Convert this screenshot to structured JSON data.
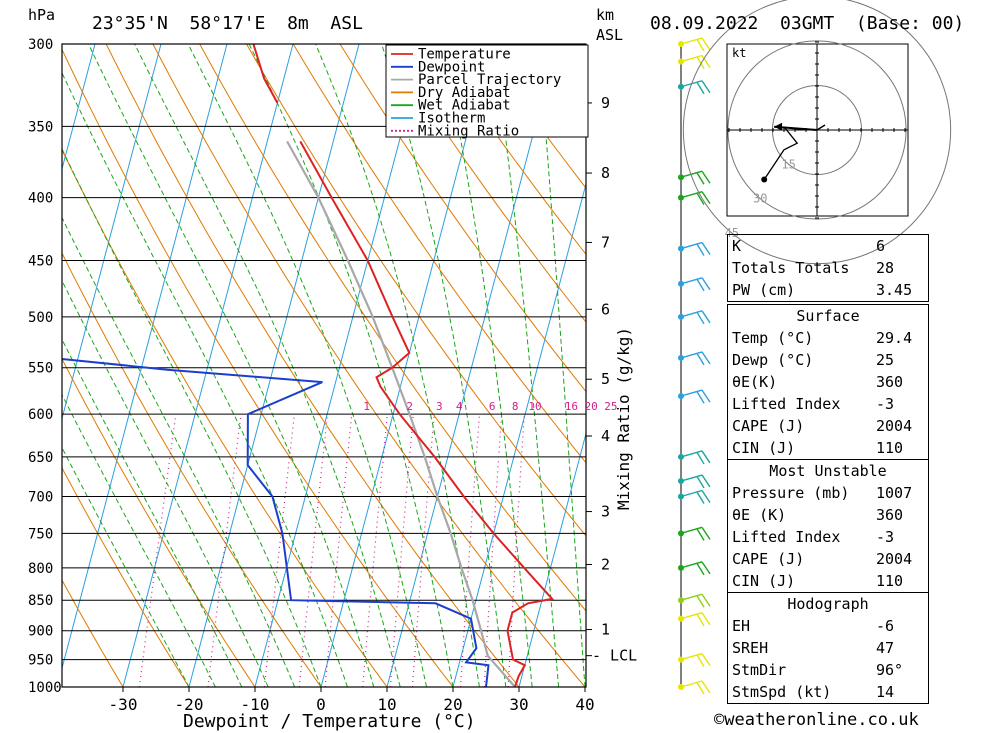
{
  "header": {
    "pressure_unit": "hPa",
    "location": "23°35'N  58°17'E  8m  ASL",
    "km_unit": "km",
    "asl_unit": "ASL",
    "date": "08.09.2022  03GMT  (Base: 00)"
  },
  "chart_data": {
    "type": "skew-t log-p",
    "xlabel": "Dewpoint / Temperature (°C)",
    "ylabel_right": "Mixing Ratio (g/kg)",
    "pressure_ticks": [
      300,
      350,
      400,
      450,
      500,
      550,
      600,
      650,
      700,
      750,
      800,
      850,
      900,
      950,
      1000
    ],
    "temperature_ticks": [
      -30,
      -20,
      -10,
      0,
      10,
      20,
      30,
      40
    ],
    "ylim_hpa": [
      1000,
      300
    ],
    "xlim_c": [
      -40,
      40
    ],
    "km_ticks": [
      {
        "label": "9",
        "p": 335
      },
      {
        "label": "8",
        "p": 382
      },
      {
        "label": "7",
        "p": 435
      },
      {
        "label": "6",
        "p": 493
      },
      {
        "label": "5",
        "p": 562
      },
      {
        "label": "4",
        "p": 625
      },
      {
        "label": "3",
        "p": 720
      },
      {
        "label": "2",
        "p": 795
      },
      {
        "label": "1",
        "p": 898
      }
    ],
    "lcl": {
      "label": "LCL",
      "p": 943
    },
    "mixing_ratio_labels": [
      {
        "label": "1",
        "t": -4
      },
      {
        "label": "2",
        "t": 2.5
      },
      {
        "label": "3",
        "t": 7
      },
      {
        "label": "4",
        "t": 10
      },
      {
        "label": "6",
        "t": 15
      },
      {
        "label": "8",
        "t": 18.5
      },
      {
        "label": "10",
        "t": 21.5
      },
      {
        "label": "16",
        "t": 27
      },
      {
        "label": "20",
        "t": 30
      },
      {
        "label": "25",
        "t": 33
      }
    ],
    "legend": [
      {
        "name": "Temperature",
        "color": "#dd2222",
        "style": "solid"
      },
      {
        "name": "Dewpoint",
        "color": "#1a3fcc",
        "style": "solid"
      },
      {
        "name": "Parcel Trajectory",
        "color": "#a8a8a8",
        "style": "solid"
      },
      {
        "name": "Dry Adiabat",
        "color": "#e07a00",
        "style": "solid"
      },
      {
        "name": "Wet Adiabat",
        "color": "#1aa61a",
        "style": "solid"
      },
      {
        "name": "Isotherm",
        "color": "#2aa0e0",
        "style": "solid"
      },
      {
        "name": "Mixing Ratio",
        "color": "#d0208a",
        "style": "dotted"
      }
    ],
    "temperature": [
      {
        "p": 1000,
        "t": 29.4
      },
      {
        "p": 980,
        "t": 29.5
      },
      {
        "p": 960,
        "t": 30
      },
      {
        "p": 950,
        "t": 28
      },
      {
        "p": 900,
        "t": 26
      },
      {
        "p": 870,
        "t": 26
      },
      {
        "p": 855,
        "t": 28
      },
      {
        "p": 848,
        "t": 31.5
      },
      {
        "p": 800,
        "t": 26
      },
      {
        "p": 750,
        "t": 20
      },
      {
        "p": 700,
        "t": 14
      },
      {
        "p": 650,
        "t": 8
      },
      {
        "p": 600,
        "t": 1
      },
      {
        "p": 570,
        "t": -3
      },
      {
        "p": 560,
        "t": -4
      },
      {
        "p": 550,
        "t": -2
      },
      {
        "p": 535,
        "t": 0
      },
      {
        "p": 500,
        "t": -4
      },
      {
        "p": 450,
        "t": -10
      },
      {
        "p": 400,
        "t": -18
      },
      {
        "p": 360,
        "t": -25
      }
    ],
    "temperature_upper": [
      {
        "p": 335,
        "t": -30
      },
      {
        "p": 320,
        "t": -33
      },
      {
        "p": 300,
        "t": -36
      }
    ],
    "dewpoint": [
      {
        "p": 1000,
        "t": 25
      },
      {
        "p": 960,
        "t": 24.5
      },
      {
        "p": 955,
        "t": 21
      },
      {
        "p": 930,
        "t": 22
      },
      {
        "p": 880,
        "t": 20
      },
      {
        "p": 855,
        "t": 14
      },
      {
        "p": 850,
        "t": -8
      },
      {
        "p": 750,
        "t": -12
      },
      {
        "p": 700,
        "t": -15
      },
      {
        "p": 660,
        "t": -20
      },
      {
        "p": 600,
        "t": -22
      },
      {
        "p": 565,
        "t": -12
      },
      {
        "p": 552,
        "t": -36
      },
      {
        "p": 540,
        "t": -54
      },
      {
        "p": 500,
        "t": -58
      },
      {
        "p": 460,
        "t": -56
      },
      {
        "p": 440,
        "t": -57
      },
      {
        "p": 400,
        "t": -64
      },
      {
        "p": 350,
        "t": -72
      },
      {
        "p": 320,
        "t": -76
      },
      {
        "p": 300,
        "t": -84
      }
    ],
    "parcel": [
      {
        "p": 1000,
        "t": 29.4
      },
      {
        "p": 943,
        "t": 24
      },
      {
        "p": 900,
        "t": 22
      },
      {
        "p": 850,
        "t": 19.5
      },
      {
        "p": 800,
        "t": 16.5
      },
      {
        "p": 750,
        "t": 13.5
      },
      {
        "p": 700,
        "t": 10
      },
      {
        "p": 650,
        "t": 6.5
      },
      {
        "p": 600,
        "t": 2.5
      },
      {
        "p": 550,
        "t": -2
      },
      {
        "p": 500,
        "t": -7
      },
      {
        "p": 450,
        "t": -13
      },
      {
        "p": 400,
        "t": -20
      },
      {
        "p": 360,
        "t": -27
      }
    ],
    "hodograph": {
      "unit": "kt",
      "ring_labels": [
        "15",
        "30",
        "45"
      ],
      "trace_kt": [
        [
          -10,
          1
        ],
        [
          -6,
          -4
        ],
        [
          -10,
          -6
        ],
        [
          -14,
          -12
        ],
        [
          -16,
          -15
        ]
      ],
      "storm_motion_kt": [
        -13,
        1
      ]
    },
    "wind_barbs": [
      {
        "p": 1000,
        "color": "#e6e600"
      },
      {
        "p": 950,
        "color": "#e6e600"
      },
      {
        "p": 880,
        "color": "#e6e600"
      },
      {
        "p": 850,
        "color": "#8fd01a"
      },
      {
        "p": 800,
        "color": "#1aa61a"
      },
      {
        "p": 750,
        "color": "#1aa61a"
      },
      {
        "p": 700,
        "color": "#1aa6a0"
      },
      {
        "p": 680,
        "color": "#1aa6a0"
      },
      {
        "p": 650,
        "color": "#1aa6a0"
      },
      {
        "p": 580,
        "color": "#2aa0e0"
      },
      {
        "p": 540,
        "color": "#2aa0e0"
      },
      {
        "p": 500,
        "color": "#2aa0e0"
      },
      {
        "p": 470,
        "color": "#2aa0e0"
      },
      {
        "p": 440,
        "color": "#2aa0e0"
      },
      {
        "p": 400,
        "color": "#1aa61a"
      },
      {
        "p": 385,
        "color": "#1aa61a"
      },
      {
        "p": 325,
        "color": "#1aa6a0"
      },
      {
        "p": 310,
        "color": "#e6e600"
      },
      {
        "p": 300,
        "color": "#e6e600"
      }
    ]
  },
  "indices": {
    "general": [
      {
        "label": "K",
        "value": "6"
      },
      {
        "label": "Totals Totals",
        "value": "28"
      },
      {
        "label": "PW (cm)",
        "value": "3.45"
      }
    ],
    "surface": {
      "title": "Surface",
      "rows": [
        {
          "label": "Temp (°C)",
          "value": "29.4"
        },
        {
          "label": "Dewp (°C)",
          "value": "25"
        },
        {
          "label": "θE(K)",
          "value": "360"
        },
        {
          "label": "Lifted Index",
          "value": "-3"
        },
        {
          "label": "CAPE (J)",
          "value": "2004"
        },
        {
          "label": "CIN (J)",
          "value": "110"
        }
      ]
    },
    "most_unstable": {
      "title": "Most Unstable",
      "rows": [
        {
          "label": "Pressure (mb)",
          "value": "1007"
        },
        {
          "label": "θE (K)",
          "value": "360"
        },
        {
          "label": "Lifted Index",
          "value": "-3"
        },
        {
          "label": "CAPE (J)",
          "value": "2004"
        },
        {
          "label": "CIN (J)",
          "value": "110"
        }
      ]
    },
    "hodograph": {
      "title": "Hodograph",
      "rows": [
        {
          "label": "EH",
          "value": "-6"
        },
        {
          "label": "SREH",
          "value": "47"
        },
        {
          "label": "StmDir",
          "value": "96°"
        },
        {
          "label": "StmSpd (kt)",
          "value": "14"
        }
      ]
    }
  },
  "footer": {
    "copyright": "©weatheronline.co.uk"
  }
}
